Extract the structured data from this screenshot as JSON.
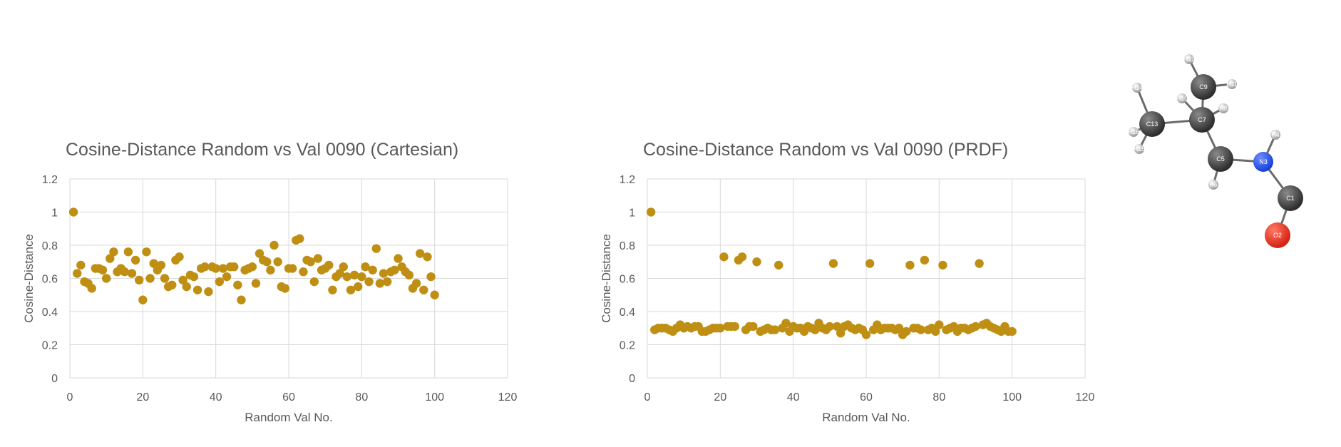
{
  "colors": {
    "marker": "#BF8F14",
    "grid": "#D9D9D9",
    "text": "#595959",
    "carbon": "#2B2B2B",
    "nitrogen": "#1240D8",
    "oxygen": "#D42010",
    "hydrogen": "#CFCFCF"
  },
  "chart_data": [
    {
      "type": "scatter",
      "title": "Cosine-Distance Random vs Val 0090 (Cartesian)",
      "xlabel": "Random Val No.",
      "ylabel": "Cosine-Distance",
      "xlim": [
        0,
        120
      ],
      "ylim": [
        0,
        1.2
      ],
      "xticks": [
        0,
        20,
        40,
        60,
        80,
        100,
        120
      ],
      "yticks": [
        0,
        0.2,
        0.4,
        0.6,
        0.8,
        1,
        1.2
      ],
      "grid": true,
      "legend": "none",
      "series": [
        {
          "x": [
            1,
            2,
            3,
            4,
            5,
            6,
            7,
            8,
            9,
            10,
            11,
            12,
            13,
            14,
            15,
            16,
            17,
            18,
            19,
            20,
            21,
            22,
            23,
            24,
            25,
            26,
            27,
            28,
            29,
            30,
            31,
            32,
            33,
            34,
            35,
            36,
            37,
            38,
            39,
            40,
            41,
            42,
            43,
            44,
            45,
            46,
            47,
            48,
            49,
            50,
            51,
            52,
            53,
            54,
            55,
            56,
            57,
            58,
            59,
            60,
            61,
            62,
            63,
            64,
            65,
            66,
            67,
            68,
            69,
            70,
            71,
            72,
            73,
            74,
            75,
            76,
            77,
            78,
            79,
            80,
            81,
            82,
            83,
            84,
            85,
            86,
            87,
            88,
            89,
            90,
            91,
            92,
            93,
            94,
            95,
            96,
            97,
            98,
            99,
            100
          ],
          "y": [
            1.0,
            0.63,
            0.68,
            0.58,
            0.57,
            0.54,
            0.66,
            0.66,
            0.65,
            0.6,
            0.72,
            0.76,
            0.64,
            0.66,
            0.64,
            0.76,
            0.63,
            0.71,
            0.59,
            0.47,
            0.76,
            0.6,
            0.69,
            0.65,
            0.68,
            0.6,
            0.55,
            0.56,
            0.71,
            0.73,
            0.59,
            0.55,
            0.62,
            0.61,
            0.53,
            0.66,
            0.67,
            0.52,
            0.67,
            0.66,
            0.58,
            0.66,
            0.61,
            0.67,
            0.67,
            0.56,
            0.47,
            0.65,
            0.66,
            0.67,
            0.57,
            0.75,
            0.71,
            0.7,
            0.65,
            0.8,
            0.7,
            0.55,
            0.54,
            0.66,
            0.66,
            0.83,
            0.84,
            0.64,
            0.71,
            0.7,
            0.58,
            0.72,
            0.65,
            0.66,
            0.68,
            0.53,
            0.61,
            0.63,
            0.67,
            0.61,
            0.53,
            0.62,
            0.55,
            0.61,
            0.67,
            0.58,
            0.65,
            0.78,
            0.57,
            0.63,
            0.58,
            0.64,
            0.65,
            0.72,
            0.67,
            0.64,
            0.62,
            0.54,
            0.57,
            0.75,
            0.53,
            0.73,
            0.61,
            0.5
          ]
        }
      ]
    },
    {
      "type": "scatter",
      "title": "Cosine-Distance Random vs Val 0090 (PRDF)",
      "xlabel": "Random Val No.",
      "ylabel": "Cosine-Distance",
      "xlim": [
        0,
        120
      ],
      "ylim": [
        0,
        1.2
      ],
      "xticks": [
        0,
        20,
        40,
        60,
        80,
        100,
        120
      ],
      "yticks": [
        0,
        0.2,
        0.4,
        0.6,
        0.8,
        1,
        1.2
      ],
      "grid": true,
      "legend": "none",
      "series": [
        {
          "x": [
            1,
            2,
            3,
            4,
            5,
            6,
            7,
            8,
            9,
            10,
            11,
            12,
            13,
            14,
            15,
            16,
            17,
            18,
            19,
            20,
            21,
            22,
            23,
            24,
            25,
            26,
            27,
            28,
            29,
            30,
            31,
            32,
            33,
            34,
            35,
            36,
            37,
            38,
            39,
            40,
            41,
            42,
            43,
            44,
            45,
            46,
            47,
            48,
            49,
            50,
            51,
            52,
            53,
            54,
            55,
            56,
            57,
            58,
            59,
            60,
            61,
            62,
            63,
            64,
            65,
            66,
            67,
            68,
            69,
            70,
            71,
            72,
            73,
            74,
            75,
            76,
            77,
            78,
            79,
            80,
            81,
            82,
            83,
            84,
            85,
            86,
            87,
            88,
            89,
            90,
            91,
            92,
            93,
            94,
            95,
            96,
            97,
            98,
            99,
            100
          ],
          "y": [
            1.0,
            0.29,
            0.3,
            0.3,
            0.3,
            0.29,
            0.28,
            0.3,
            0.32,
            0.3,
            0.31,
            0.3,
            0.31,
            0.31,
            0.28,
            0.28,
            0.29,
            0.3,
            0.3,
            0.3,
            0.73,
            0.31,
            0.31,
            0.31,
            0.71,
            0.73,
            0.29,
            0.31,
            0.31,
            0.7,
            0.28,
            0.29,
            0.3,
            0.29,
            0.29,
            0.68,
            0.3,
            0.33,
            0.28,
            0.31,
            0.3,
            0.3,
            0.28,
            0.31,
            0.3,
            0.29,
            0.33,
            0.3,
            0.29,
            0.31,
            0.69,
            0.31,
            0.27,
            0.31,
            0.32,
            0.3,
            0.29,
            0.3,
            0.29,
            0.26,
            0.69,
            0.29,
            0.32,
            0.29,
            0.3,
            0.3,
            0.3,
            0.29,
            0.3,
            0.26,
            0.28,
            0.68,
            0.3,
            0.3,
            0.29,
            0.71,
            0.29,
            0.3,
            0.28,
            0.32,
            0.68,
            0.29,
            0.3,
            0.31,
            0.28,
            0.3,
            0.3,
            0.29,
            0.3,
            0.31,
            0.69,
            0.32,
            0.33,
            0.31,
            0.3,
            0.29,
            0.28,
            0.31,
            0.28,
            0.28
          ]
        }
      ]
    }
  ],
  "molecule": {
    "atoms": [
      {
        "id": "C13",
        "label": "C13",
        "element": "carbon"
      },
      {
        "id": "C7",
        "label": "C7",
        "element": "carbon"
      },
      {
        "id": "C9",
        "label": "C9",
        "element": "carbon"
      },
      {
        "id": "C5",
        "label": "C5",
        "element": "carbon"
      },
      {
        "id": "N3",
        "label": "N3",
        "element": "nitrogen"
      },
      {
        "id": "C1",
        "label": "C1",
        "element": "carbon"
      },
      {
        "id": "O2",
        "label": "O2",
        "element": "oxygen"
      },
      {
        "id": "H14",
        "label": "H14",
        "element": "hydrogen"
      },
      {
        "id": "H16",
        "label": "H16",
        "element": "hydrogen"
      },
      {
        "id": "H15",
        "label": "H15",
        "element": "hydrogen"
      },
      {
        "id": "H12",
        "label": "H12",
        "element": "hydrogen"
      },
      {
        "id": "H11",
        "label": "H11",
        "element": "hydrogen"
      },
      {
        "id": "H10",
        "label": "H10",
        "element": "hydrogen"
      },
      {
        "id": "H8",
        "label": "H8",
        "element": "hydrogen"
      },
      {
        "id": "H6",
        "label": "H6",
        "element": "hydrogen"
      },
      {
        "id": "H4",
        "label": "H4",
        "element": "hydrogen"
      }
    ]
  }
}
